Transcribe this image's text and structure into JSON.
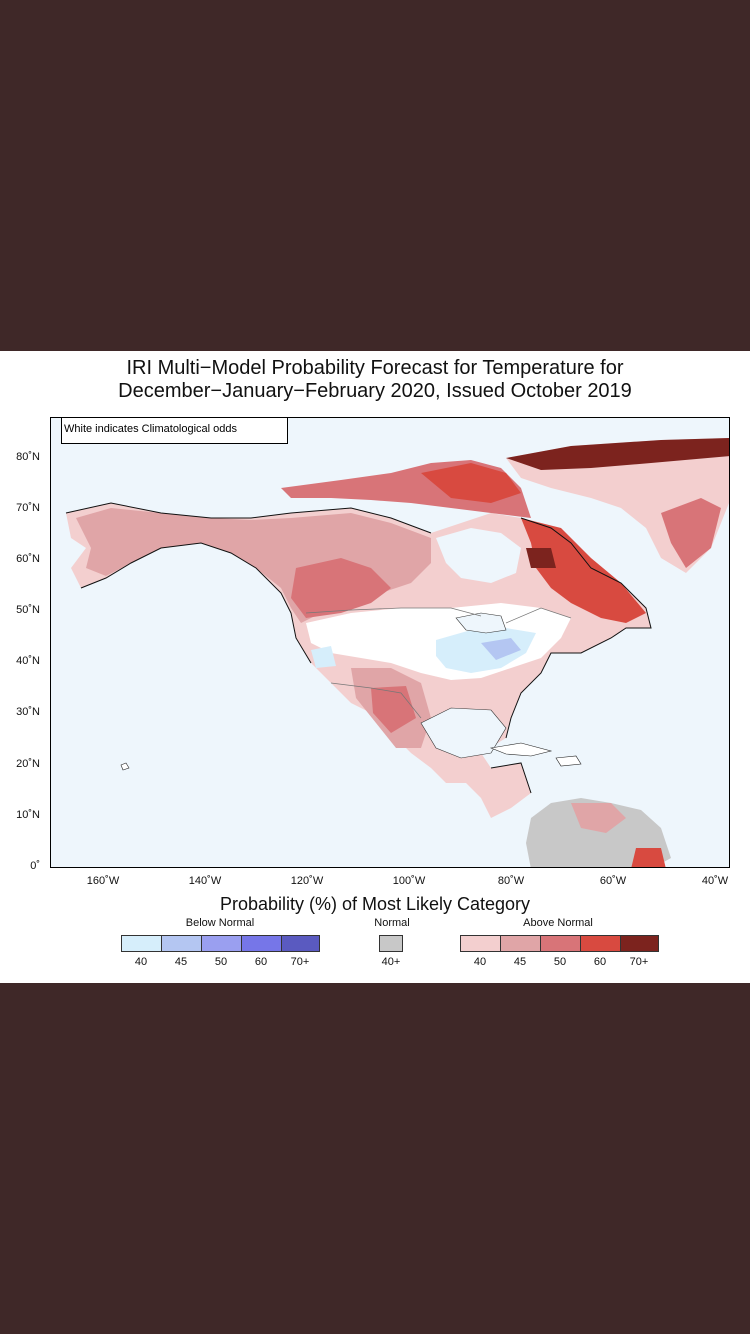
{
  "title_line1": "IRI Multi−Model Probability Forecast for Temperature for",
  "title_line2": "December−January−February 2020, Issued October 2019",
  "note": "White indicates Climatological odds",
  "lat_labels": [
    "80˚N",
    "70˚N",
    "60˚N",
    "50˚N",
    "40˚N",
    "30˚N",
    "20˚N",
    "10˚N",
    "0˚"
  ],
  "lon_labels": [
    "160˚W",
    "140˚W",
    "120˚W",
    "100˚W",
    "80˚W",
    "60˚W",
    "40˚W"
  ],
  "legend_title": "Probability (%) of Most Likely Category",
  "legend": {
    "below": {
      "label": "Below Normal",
      "values": [
        "40",
        "45",
        "50",
        "60",
        "70+"
      ],
      "colors": [
        "#d6eefb",
        "#b4c6f2",
        "#9a9ff0",
        "#7676e8",
        "#5a5ac0"
      ]
    },
    "normal": {
      "label": "Normal",
      "values": [
        "40+"
      ],
      "colors": [
        "#c8c8c8"
      ]
    },
    "above": {
      "label": "Above Normal",
      "values": [
        "40",
        "45",
        "50",
        "60",
        "70+"
      ],
      "colors": [
        "#f3cfcf",
        "#e0a5a7",
        "#d87478",
        "#d84a40",
        "#7c231e"
      ]
    }
  },
  "colors": {
    "ocean": "#eef6fc",
    "land_white": "#ffffff",
    "frame_bg": "#3f2828"
  }
}
